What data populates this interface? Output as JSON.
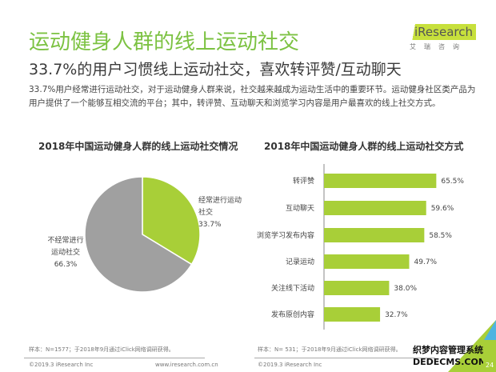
{
  "header": {
    "title": "运动健身人群的线上运动社交",
    "subtitle": "33.7%的用户习惯线上运动社交，喜欢转评赞/互动聊天",
    "body": "33.7%用户经常进行运动社交，对于运动健身人群来说，社交越来越成为运动生活中的重要环节。运动健身社区类产品为用户提供了一个能够互相交流的平台；其中，转评赞、互动聊天和浏览学习内容是用户最喜欢的线上社交方式。"
  },
  "logo": {
    "word": "iResearch",
    "cn": "艾瑞咨询"
  },
  "colors": {
    "green": "#a8cf38",
    "gray": "#a0a0a0",
    "title": "#7cc242"
  },
  "chart_data": [
    {
      "type": "pie",
      "title": "2018年中国运动健身人群的线上运动社交情况",
      "slices": [
        {
          "label": "经常进行运动社交",
          "value": 33.7,
          "display": "33.7%",
          "color": "#a8cf38"
        },
        {
          "label": "不经常进行运动社交",
          "value": 66.3,
          "display": "66.3%",
          "color": "#a0a0a0"
        }
      ]
    },
    {
      "type": "bar",
      "orientation": "horizontal",
      "title": "2018年中国运动健身人群的线上运动社交方式",
      "categories": [
        "转评赞",
        "互动聊天",
        "浏览学习发布内容",
        "记录运动",
        "关注线下活动",
        "发布原创内容"
      ],
      "values": [
        65.5,
        59.6,
        58.5,
        49.7,
        38.0,
        32.7
      ],
      "labels": [
        "65.5%",
        "59.6%",
        "58.5%",
        "49.7%",
        "38.0%",
        "32.7%"
      ],
      "color": "#a8cf38"
    }
  ],
  "footer": {
    "sample_left": "样本：N=1577；于2018年9月通过iClick网络调研获得。",
    "sample_right": "样本：N= 531；于2018年9月通过iClick网络调研获得。",
    "copyright_left": "©2019.3  iResearch Inc",
    "url_left": "www.iresearch.com.cn",
    "copyright_right": "©2019.3  iResearch Inc",
    "page": "24"
  },
  "watermark": {
    "line1": "织梦内容管理系统",
    "line2": "DEDECMS.COM"
  }
}
